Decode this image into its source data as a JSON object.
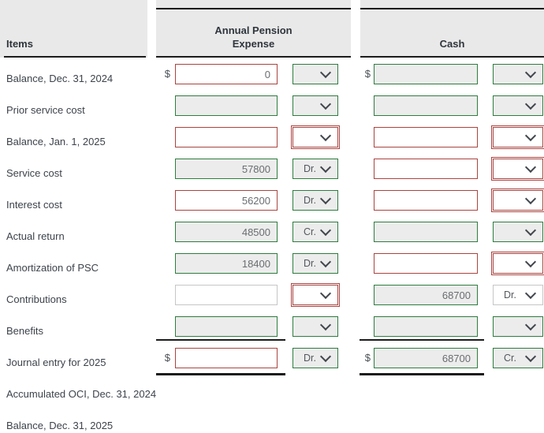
{
  "header": {
    "items": "Items",
    "expense": "Annual Pension\nExpense",
    "cash": "Cash"
  },
  "colors": {
    "accent_green": "#2e7d3f",
    "error_red": "#a94440",
    "header_bg": "#e9e9e9",
    "disabled_bg": "#ececec",
    "rule_black": "#1c1c1c"
  },
  "rows": [
    {
      "label": "Balance, Dec. 31, 2024",
      "expense": {
        "prefix": "$",
        "value": "0",
        "state": "invalid",
        "dropdown": {
          "value": "",
          "state": "valid"
        }
      },
      "cash": {
        "prefix": "$",
        "value": "",
        "state": "valid",
        "dropdown": {
          "value": "",
          "state": "valid"
        }
      }
    },
    {
      "label": "Prior service cost",
      "expense": {
        "prefix": "",
        "value": "",
        "state": "valid",
        "dropdown": {
          "value": "",
          "state": "valid"
        }
      },
      "cash": {
        "prefix": "",
        "value": "",
        "state": "valid",
        "dropdown": {
          "value": "",
          "state": "valid"
        }
      }
    },
    {
      "label": "Balance, Jan. 1, 2025",
      "expense": {
        "prefix": "",
        "value": "",
        "state": "invalid",
        "dropdown": {
          "value": "",
          "state": "invalid"
        }
      },
      "cash": {
        "prefix": "",
        "value": "",
        "state": "invalid",
        "dropdown": {
          "value": "",
          "state": "invalid"
        }
      }
    },
    {
      "label": "Service cost",
      "expense": {
        "prefix": "",
        "value": "57800",
        "state": "valid",
        "dropdown": {
          "value": "Dr.",
          "state": "valid"
        }
      },
      "cash": {
        "prefix": "",
        "value": "",
        "state": "invalid",
        "dropdown": {
          "value": "",
          "state": "invalid"
        }
      }
    },
    {
      "label": "Interest cost",
      "expense": {
        "prefix": "",
        "value": "56200",
        "state": "invalid",
        "dropdown": {
          "value": "Dr.",
          "state": "valid"
        }
      },
      "cash": {
        "prefix": "",
        "value": "",
        "state": "invalid",
        "dropdown": {
          "value": "",
          "state": "invalid"
        }
      }
    },
    {
      "label": "Actual return",
      "expense": {
        "prefix": "",
        "value": "48500",
        "state": "valid",
        "dropdown": {
          "value": "Cr.",
          "state": "valid"
        }
      },
      "cash": {
        "prefix": "",
        "value": "",
        "state": "valid",
        "dropdown": {
          "value": "",
          "state": "valid"
        }
      }
    },
    {
      "label": "Amortization of PSC",
      "expense": {
        "prefix": "",
        "value": "18400",
        "state": "valid",
        "dropdown": {
          "value": "Dr.",
          "state": "valid"
        }
      },
      "cash": {
        "prefix": "",
        "value": "",
        "state": "invalid",
        "dropdown": {
          "value": "",
          "state": "invalid"
        }
      }
    },
    {
      "label": "Contributions",
      "expense": {
        "prefix": "",
        "value": "",
        "state": "neutral",
        "dropdown": {
          "value": "",
          "state": "invalid"
        }
      },
      "cash": {
        "prefix": "",
        "value": "68700",
        "state": "valid",
        "dropdown": {
          "value": "Dr.",
          "state": "neutral"
        }
      }
    },
    {
      "label": "Benefits",
      "expense": {
        "prefix": "",
        "value": "",
        "state": "valid",
        "dropdown": {
          "value": "",
          "state": "valid"
        }
      },
      "cash": {
        "prefix": "",
        "value": "",
        "state": "valid",
        "dropdown": {
          "value": "",
          "state": "valid"
        }
      }
    },
    {
      "label": "Journal entry for 2025",
      "total_row": true,
      "expense": {
        "prefix": "$",
        "value": "",
        "state": "invalid",
        "dropdown": {
          "value": "Dr.",
          "state": "valid"
        }
      },
      "cash": {
        "prefix": "$",
        "value": "68700",
        "state": "valid",
        "dropdown": {
          "value": "Cr.",
          "state": "valid"
        }
      }
    },
    {
      "label": "Accumulated OCI, Dec. 31, 2024",
      "expense": null,
      "cash": null
    },
    {
      "label": "Balance, Dec. 31, 2025",
      "expense": null,
      "cash": null
    }
  ]
}
